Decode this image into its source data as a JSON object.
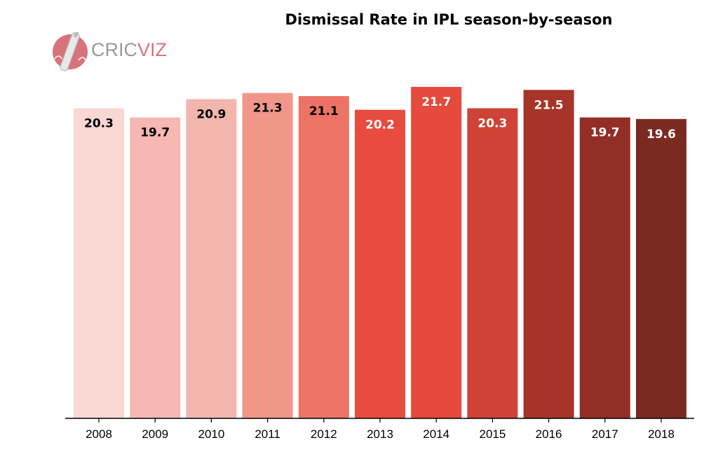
{
  "chart_data": {
    "type": "bar",
    "title": "Dismissal Rate in IPL season-by-season",
    "xlabel": "",
    "ylabel": "",
    "categories": [
      "2008",
      "2009",
      "2010",
      "2011",
      "2012",
      "2013",
      "2014",
      "2015",
      "2016",
      "2017",
      "2018"
    ],
    "values": [
      20.3,
      19.7,
      20.9,
      21.3,
      21.1,
      20.2,
      21.7,
      20.3,
      21.5,
      19.7,
      19.6
    ],
    "value_labels": [
      "20.3",
      "19.7",
      "20.9",
      "21.3",
      "21.1",
      "20.2",
      "21.7",
      "20.3",
      "21.5",
      "19.7",
      "19.6"
    ],
    "colors": [
      "#f9d8d4",
      "#f5b8b2",
      "#f3b6af",
      "#f0978a",
      "#ec7366",
      "#e84c3f",
      "#e54a3c",
      "#ce4336",
      "#a63429",
      "#922e26",
      "#7b2a22"
    ],
    "label_colors": [
      "#000000",
      "#000000",
      "#000000",
      "#000000",
      "#000000",
      "#ffffff",
      "#ffffff",
      "#ffffff",
      "#ffffff",
      "#ffffff",
      "#ffffff"
    ],
    "ylim": [
      0,
      22.25
    ],
    "grid": false,
    "legend": "none"
  },
  "logo": {
    "icon": "cricket-bat-ball-icon",
    "brand_part1": "CRIC",
    "brand_part2": "VIZ"
  }
}
